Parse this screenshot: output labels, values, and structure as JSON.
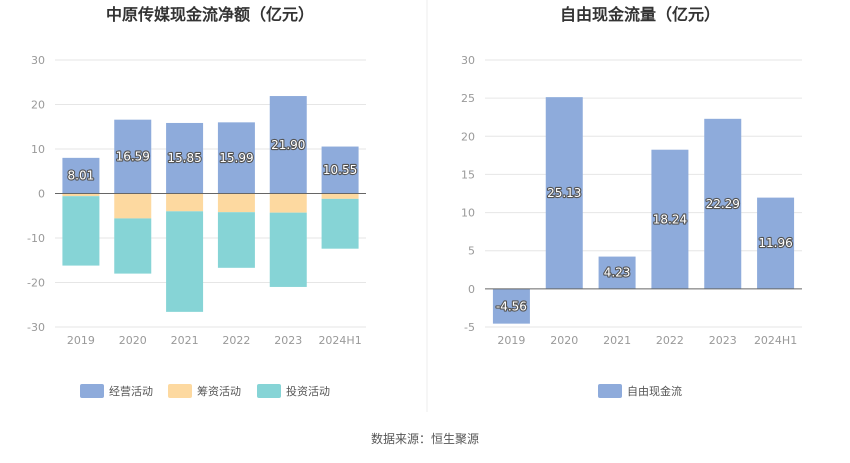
{
  "source": "数据来源：恒生聚源",
  "chart_data": [
    {
      "type": "bar",
      "stacked": true,
      "title": "中原传媒现金流净额（亿元）",
      "categories": [
        "2019",
        "2020",
        "2021",
        "2022",
        "2023",
        "2024H1"
      ],
      "ylim": [
        -30,
        30
      ],
      "yticks": [
        -30,
        -20,
        -10,
        0,
        10,
        20,
        30
      ],
      "grid": true,
      "legend_position": "bottom",
      "series": [
        {
          "name": "经营活动",
          "color": "#8eabdb",
          "values": [
            8.01,
            16.59,
            15.85,
            15.99,
            21.9,
            10.55
          ],
          "labels": [
            "8.01",
            "16.59",
            "15.85",
            "15.99",
            "21.90",
            "10.55"
          ]
        },
        {
          "name": "筹资活动",
          "color": "#fdd9a0",
          "values": [
            -0.6,
            -5.6,
            -4.0,
            -4.2,
            -4.3,
            -1.2
          ]
        },
        {
          "name": "投资活动",
          "color": "#86d4d6",
          "values": [
            -15.6,
            -12.4,
            -22.6,
            -12.5,
            -16.7,
            -11.2
          ]
        }
      ]
    },
    {
      "type": "bar",
      "title": "自由现金流量（亿元）",
      "categories": [
        "2019",
        "2020",
        "2021",
        "2022",
        "2023",
        "2024H1"
      ],
      "ylim": [
        -5,
        30
      ],
      "yticks": [
        -5,
        0,
        5,
        10,
        15,
        20,
        25,
        30
      ],
      "grid": true,
      "legend_position": "bottom",
      "series": [
        {
          "name": "自由现金流",
          "color": "#8eabdb",
          "values": [
            -4.56,
            25.13,
            4.23,
            18.24,
            22.29,
            11.96
          ],
          "labels": [
            "-4.56",
            "25.13",
            "4.23",
            "18.24",
            "22.29",
            "11.96"
          ]
        }
      ]
    }
  ]
}
